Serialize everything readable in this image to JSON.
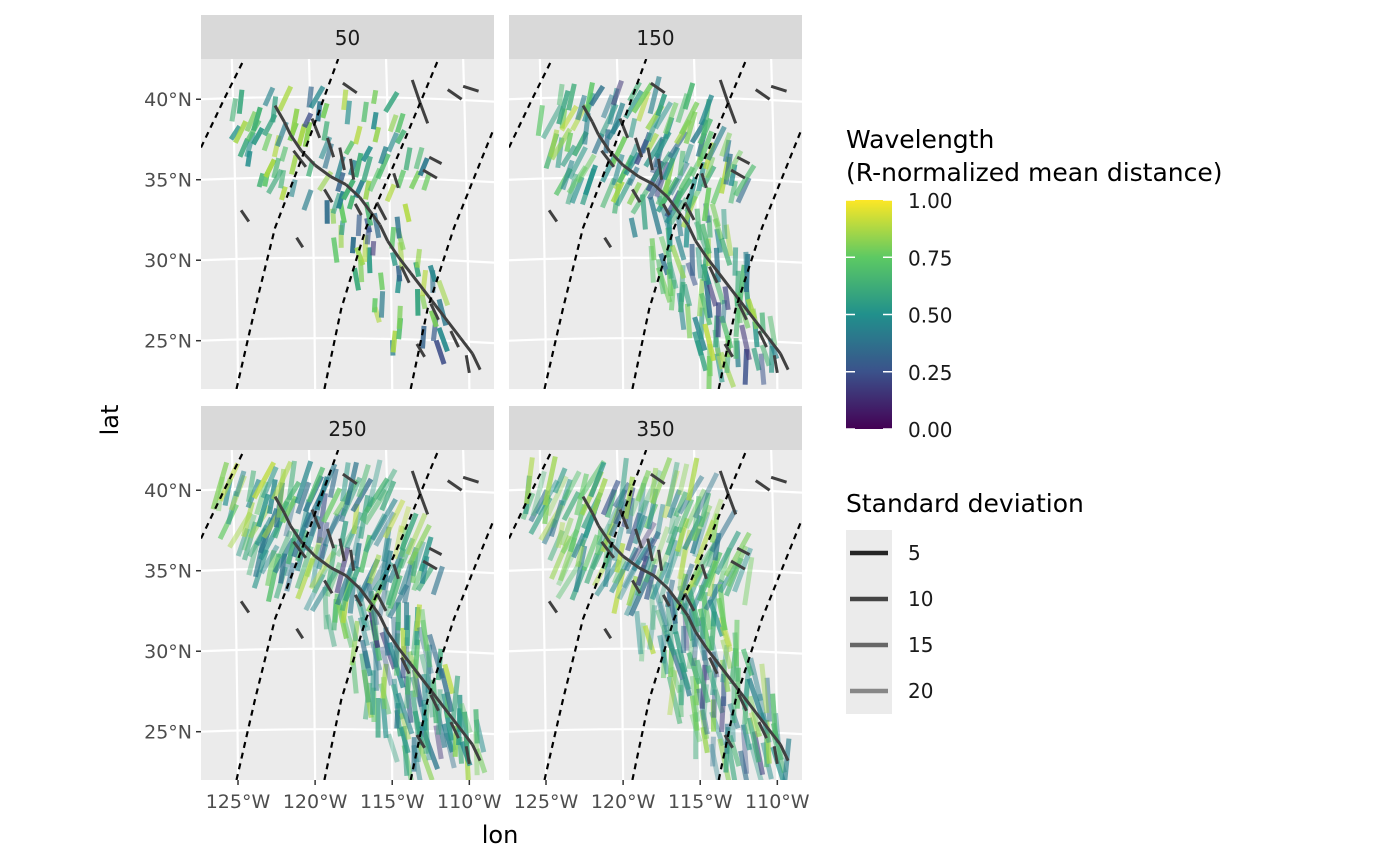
{
  "chart_data": {
    "type": "faceted-segment-map",
    "x_axis_title": "lon",
    "y_axis_title": "lat",
    "xlim": [
      -127,
      -108
    ],
    "ylim": [
      22,
      42.5
    ],
    "x_ticks": [
      {
        "value": -125,
        "label": "125°W"
      },
      {
        "value": -120,
        "label": "120°W"
      },
      {
        "value": -115,
        "label": "115°W"
      },
      {
        "value": -110,
        "label": "110°W"
      }
    ],
    "y_ticks": [
      {
        "value": 25,
        "label": "25°N"
      },
      {
        "value": 30,
        "label": "30°N"
      },
      {
        "value": 35,
        "label": "35°N"
      },
      {
        "value": 40,
        "label": "40°N"
      }
    ],
    "facets": [
      "50",
      "150",
      "250",
      "350"
    ],
    "grid": true,
    "reference_arcs": [
      {
        "style": "dashed",
        "points": [
          [
            -127,
            37
          ],
          [
            -125.5,
            40
          ],
          [
            -124.2,
            42.5
          ]
        ]
      },
      {
        "style": "dashed",
        "points": [
          [
            -124.7,
            22
          ],
          [
            -123.5,
            27
          ],
          [
            -122.2,
            32
          ],
          [
            -120.2,
            37
          ],
          [
            -118.1,
            42.5
          ]
        ]
      },
      {
        "style": "dashed",
        "points": [
          [
            -119,
            22
          ],
          [
            -117.9,
            27
          ],
          [
            -116.3,
            32
          ],
          [
            -114,
            37
          ],
          [
            -111.6,
            42.5
          ]
        ]
      },
      {
        "style": "dashed",
        "points": [
          [
            -113.4,
            22
          ],
          [
            -112.3,
            27
          ],
          [
            -110.6,
            32
          ],
          [
            -108,
            38.2
          ]
        ]
      }
    ],
    "fault_segments": [
      [
        -122.2,
        39.6,
        -121.6,
        38.6
      ],
      [
        -121.6,
        38.6,
        -121.2,
        37.8
      ],
      [
        -121.2,
        37.8,
        -120.5,
        36.8
      ],
      [
        -120.5,
        36.8,
        -119.6,
        35.9
      ],
      [
        -119.6,
        35.9,
        -118.6,
        35.2
      ],
      [
        -118.6,
        35.2,
        -117.6,
        34.7
      ],
      [
        -117.6,
        34.7,
        -116.7,
        33.9
      ],
      [
        -116.7,
        33.9,
        -116.0,
        33.0
      ],
      [
        -116.0,
        33.0,
        -115.4,
        32.2
      ],
      [
        -115.4,
        32.2,
        -114.9,
        31.2
      ],
      [
        -114.9,
        31.2,
        -114.2,
        30.2
      ],
      [
        -114.2,
        30.2,
        -113.4,
        29.2
      ],
      [
        -113.4,
        29.2,
        -112.6,
        28.2
      ],
      [
        -112.6,
        28.2,
        -111.8,
        27.2
      ],
      [
        -111.8,
        27.2,
        -111.0,
        26.2
      ],
      [
        -111.0,
        26.2,
        -110.2,
        25.2
      ],
      [
        -110.2,
        25.2,
        -109.4,
        24.2
      ],
      [
        -109.4,
        24.2,
        -108.9,
        23.2
      ],
      [
        -121.0,
        36.8,
        -120.2,
        35.8
      ],
      [
        -118.8,
        37.6,
        -118.4,
        36.4
      ],
      [
        -118.0,
        37.0,
        -117.7,
        35.6
      ],
      [
        -117.3,
        36.3,
        -117.1,
        35.0
      ],
      [
        -113.3,
        41.2,
        -112.8,
        39.8
      ],
      [
        -112.8,
        39.8,
        -112.3,
        38.5
      ],
      [
        -117.8,
        41.0,
        -116.9,
        40.4
      ],
      [
        -119.8,
        38.8,
        -119.3,
        37.6
      ],
      [
        -115.6,
        33.6,
        -115.0,
        32.5
      ],
      [
        -114.0,
        29.6,
        -113.5,
        28.6
      ],
      [
        -112.1,
        27.3,
        -111.6,
        26.3
      ],
      [
        -110.8,
        25.6,
        -110.3,
        24.6
      ],
      [
        -124.4,
        33.1,
        -123.9,
        32.4
      ],
      [
        -120.8,
        31.4,
        -120.4,
        30.8
      ],
      [
        -114.5,
        35.4,
        -114.2,
        34.5
      ],
      [
        -112.6,
        35.6,
        -111.7,
        35.1
      ],
      [
        -112.2,
        36.4,
        -111.4,
        36.0
      ],
      [
        -111.0,
        40.6,
        -110.1,
        40.0
      ],
      [
        -110.0,
        40.8,
        -109.0,
        40.5
      ],
      [
        -119.0,
        34.4,
        -118.5,
        33.6
      ],
      [
        -117.0,
        33.5,
        -116.6,
        32.8
      ],
      [
        -113.0,
        24.8,
        -112.5,
        24.0
      ],
      [
        -109.8,
        24.1,
        -109.6,
        23.0
      ]
    ],
    "wavelength_scale": {
      "title": "Wavelength\n(R-normalized mean distance)",
      "title_lines": [
        "Wavelength",
        "(R-normalized mean distance)"
      ],
      "palette": "viridis",
      "colors": [
        "#440154",
        "#3b528b",
        "#21908c",
        "#5dc963",
        "#fde725"
      ],
      "limits": [
        0,
        1
      ],
      "breaks": [
        "1.00",
        "0.75",
        "0.50",
        "0.25",
        "0.00"
      ]
    },
    "sd_scale": {
      "title": "Standard deviation",
      "breaks": [
        {
          "label": "5",
          "alpha": 0.95
        },
        {
          "label": "10",
          "alpha": 0.8
        },
        {
          "label": "15",
          "alpha": 0.63
        },
        {
          "label": "20",
          "alpha": 0.48
        }
      ]
    },
    "segment_series": [
      {
        "facet": "50",
        "lon_range": [
          -125,
          -111
        ],
        "lat_range": [
          23.5,
          40.5
        ],
        "density": 0.35,
        "length_deg": 1.4,
        "alpha_range": [
          0.6,
          0.95
        ]
      },
      {
        "facet": "150",
        "lon_range": [
          -125,
          -109.5
        ],
        "lat_range": [
          23,
          40.8
        ],
        "density": 0.65,
        "length_deg": 2.0,
        "alpha_range": [
          0.5,
          0.85
        ]
      },
      {
        "facet": "250",
        "lon_range": [
          -126,
          -108.5
        ],
        "lat_range": [
          22.8,
          41
        ],
        "density": 0.85,
        "length_deg": 2.6,
        "alpha_range": [
          0.4,
          0.8
        ]
      },
      {
        "facet": "350",
        "lon_range": [
          -126,
          -108.5
        ],
        "lat_range": [
          22.8,
          41
        ],
        "density": 0.85,
        "length_deg": 2.6,
        "alpha_range": [
          0.35,
          0.75
        ]
      }
    ]
  }
}
